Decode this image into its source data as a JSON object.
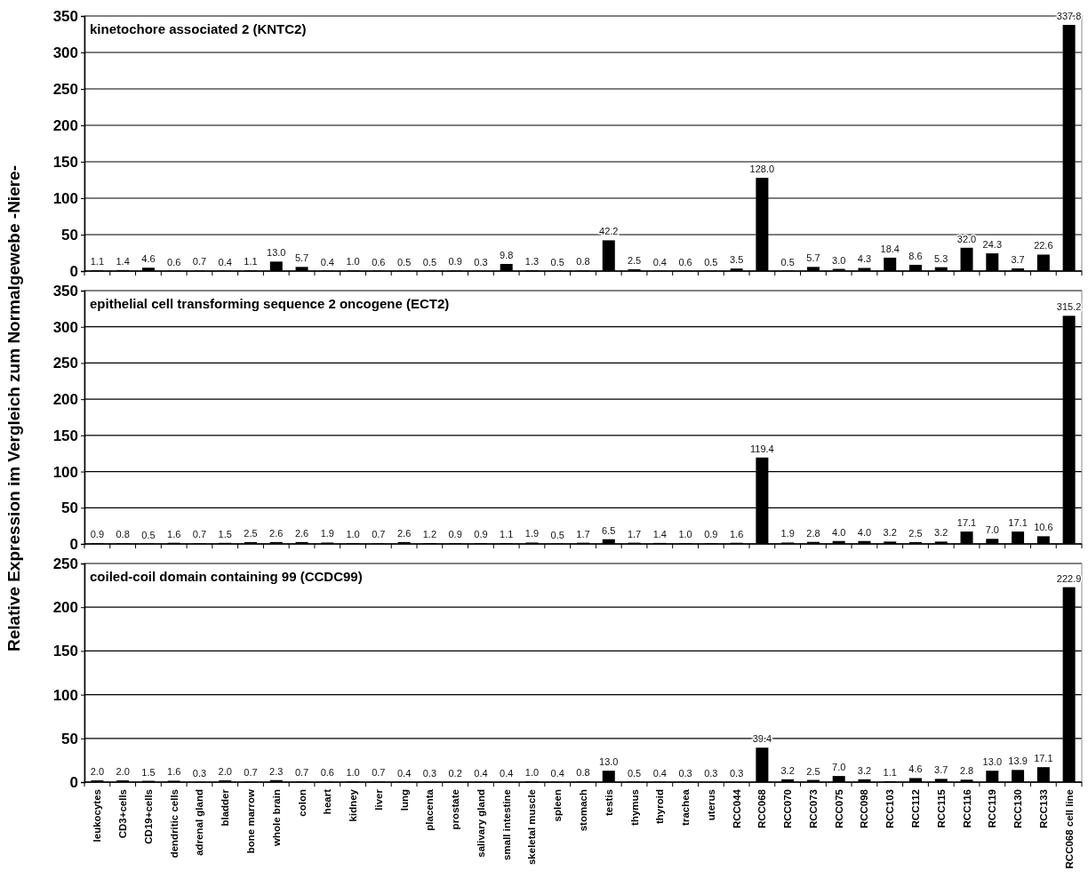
{
  "chart_data": [
    {
      "type": "bar",
      "title": "kinetochore associated 2 (KNTC2)",
      "categories": [
        null,
        null,
        null,
        null,
        null,
        null,
        null,
        null,
        null,
        null,
        null,
        null,
        null,
        null,
        null,
        null,
        null,
        null,
        null,
        null,
        null,
        null,
        null,
        null,
        null,
        null,
        null,
        null,
        null,
        null,
        null,
        null,
        null,
        null,
        null,
        null,
        null,
        null,
        null
      ],
      "values": [
        1.1,
        1.4,
        4.6,
        0.6,
        0.7,
        0.4,
        1.1,
        13.0,
        5.7,
        0.4,
        1.0,
        0.6,
        0.5,
        0.5,
        0.9,
        0.3,
        9.8,
        1.3,
        0.5,
        0.8,
        42.2,
        2.5,
        0.4,
        0.6,
        0.5,
        3.5,
        128.0,
        0.5,
        5.7,
        3.0,
        4.3,
        18.4,
        8.6,
        5.3,
        32.0,
        24.3,
        3.7,
        22.6,
        337.8
      ],
      "value_labels": [
        "1.1",
        "1.4",
        "4.6",
        "0.6",
        "0.7",
        "0.4",
        "1.1",
        "13.0",
        "5.7",
        "0.4",
        "1.0",
        "0.6",
        "0.5",
        "0.5",
        "0.9",
        "0.3",
        "9.8",
        "1.3",
        "0.5",
        "0.8",
        "42.2",
        "2.5",
        "0.4",
        "0.6",
        "0.5",
        "3.5",
        "128.0",
        "0.5",
        "5.7",
        "3.0",
        "4.3",
        "18.4",
        "8.6",
        "5.3",
        "32.0",
        "24.3",
        "3.7",
        "22.6",
        "337.8"
      ],
      "color": "#000000",
      "ylim": [
        0,
        350
      ],
      "yticks": [
        0,
        50,
        100,
        150,
        200,
        250,
        300,
        350
      ],
      "grid": "y"
    },
    {
      "type": "bar",
      "title": "epithelial cell transforming sequence 2 oncogene (ECT2)",
      "ylabel": "Relative Expression im Vergleich zum Normalgewebe -Niere-",
      "categories": [
        null,
        null,
        null,
        null,
        null,
        null,
        null,
        null,
        null,
        null,
        null,
        null,
        null,
        null,
        null,
        null,
        null,
        null,
        null,
        null,
        null,
        null,
        null,
        null,
        null,
        null,
        null,
        null,
        null,
        null,
        null,
        null,
        null,
        null,
        null,
        null,
        null,
        null,
        null
      ],
      "values": [
        0.9,
        0.8,
        0.5,
        1.6,
        0.7,
        1.5,
        2.5,
        2.6,
        2.6,
        1.9,
        1.0,
        0.7,
        2.6,
        1.2,
        0.9,
        0.9,
        1.1,
        1.9,
        0.5,
        1.7,
        6.5,
        1.7,
        1.4,
        1.0,
        0.9,
        1.6,
        119.4,
        1.9,
        2.8,
        4.0,
        4.0,
        3.2,
        2.5,
        3.2,
        17.1,
        7.0,
        17.1,
        10.6,
        315.2
      ],
      "value_labels": [
        "0.9",
        "0.8",
        "0.5",
        "1.6",
        "0.7",
        "1.5",
        "2.5",
        "2.6",
        "2.6",
        "1.9",
        "1.0",
        "0.7",
        "2.6",
        "1.2",
        "0.9",
        "0.9",
        "1.1",
        "1.9",
        "0.5",
        "1.7",
        "6.5",
        "1.7",
        "1.4",
        "1.0",
        "0.9",
        "1.6",
        "119.4",
        "1.9",
        "2.8",
        "4.0",
        "4.0",
        "3.2",
        "2.5",
        "3.2",
        "17.1",
        "7.0",
        "17.1",
        "10.6",
        "315.2"
      ],
      "color": "#000000",
      "ylim": [
        0,
        350
      ],
      "yticks": [
        0,
        50,
        100,
        150,
        200,
        250,
        300,
        350
      ],
      "grid": "y"
    },
    {
      "type": "bar",
      "title": "coiled-coil domain containing 99 (CCDC99)",
      "categories": [
        "leukocytes",
        "CD3+cells",
        "CD19+cells",
        "dendritic cells",
        "adrenal gland",
        "bladder",
        "bone marrow",
        "whole brain",
        "colon",
        "heart",
        "kidney",
        "liver",
        "lung",
        "placenta",
        "prostate",
        "salivary gland",
        "small intestine",
        "skeletal muscle",
        "spleen",
        "stomach",
        "testis",
        "thymus",
        "thyroid",
        "trachea",
        "uterus",
        "RCC044",
        "RCC068",
        "RCC070",
        "RCC073",
        "RCC075",
        "RCC098",
        "RCC103",
        "RCC112",
        "RCC115",
        "RCC116",
        "RCC119",
        "RCC130",
        "RCC133",
        "RCC068 cell line"
      ],
      "values": [
        2.0,
        2.0,
        1.5,
        1.6,
        0.3,
        2.0,
        0.7,
        2.3,
        0.7,
        0.6,
        1.0,
        0.7,
        0.4,
        0.3,
        0.2,
        0.4,
        0.4,
        1.0,
        0.4,
        0.8,
        13.0,
        0.5,
        0.4,
        0.3,
        0.3,
        0.3,
        39.4,
        3.2,
        2.5,
        7.0,
        3.2,
        1.1,
        4.6,
        3.7,
        2.8,
        13.0,
        13.9,
        17.1,
        222.9
      ],
      "value_labels": [
        "2.0",
        "2.0",
        "1.5",
        "1.6",
        "0.3",
        "2.0",
        "0.7",
        "2.3",
        "0.7",
        "0.6",
        "1.0",
        "0.7",
        "0.4",
        "0.3",
        "0.2",
        "0.4",
        "0.4",
        "1.0",
        "0.4",
        "0.8",
        "13.0",
        "0.5",
        "0.4",
        "0.3",
        "0.3",
        "0.3",
        "39.4",
        "3.2",
        "2.5",
        "7.0",
        "3.2",
        "1.1",
        "4.6",
        "3.7",
        "2.8",
        "13.0",
        "13.9",
        "17.1",
        "222.9"
      ],
      "color": "#000000",
      "ylim": [
        0,
        250
      ],
      "yticks": [
        0,
        50,
        100,
        150,
        200,
        250
      ],
      "grid": "y"
    }
  ]
}
